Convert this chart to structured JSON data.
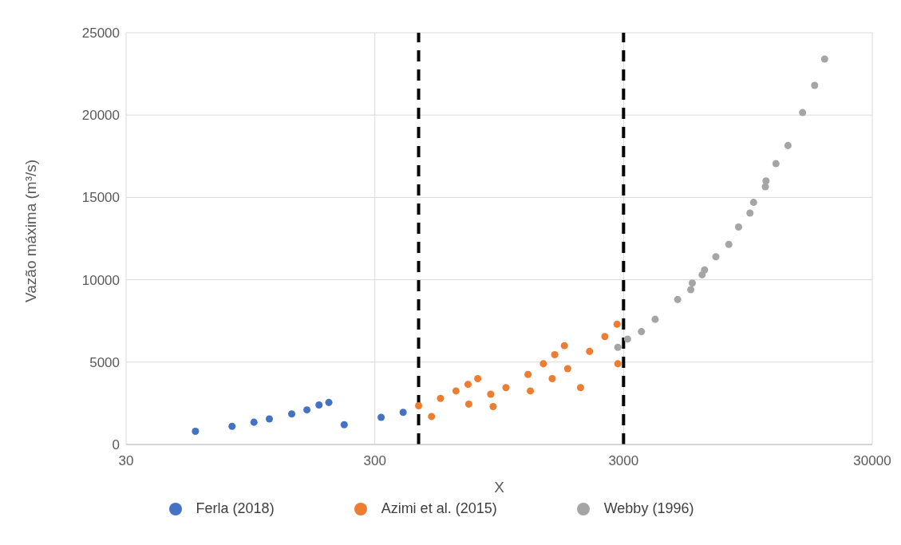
{
  "chart_data": {
    "type": "scatter",
    "xlabel": "X",
    "ylabel": "Vazão máxima (m³/s)",
    "log": "x",
    "xlim": [
      30,
      30000
    ],
    "xticks": [
      30,
      300,
      3000,
      30000
    ],
    "ylim": [
      0,
      25000
    ],
    "yticks": [
      0,
      5000,
      10000,
      15000,
      20000,
      25000
    ],
    "grid": true,
    "legend": "bottom",
    "marker": "circle",
    "series": [
      {
        "name": "Ferla (2018)",
        "color": "#4472c4",
        "x": [
          57,
          80,
          98,
          113,
          139,
          160,
          179,
          196,
          226,
          318,
          390
        ],
        "values": [
          800,
          1100,
          1350,
          1550,
          1850,
          2100,
          2400,
          2550,
          1200,
          1650,
          1950
        ]
      },
      {
        "name": "Azimi et al. (2015)",
        "color": "#ed7d31",
        "x": [
          450,
          507,
          551,
          636,
          711,
          716,
          778,
          877,
          897,
          1010,
          1239,
          1266,
          1428,
          1550,
          1586,
          1735,
          1788,
          2015,
          2190,
          2523,
          2826,
          2846
        ],
        "values": [
          2350,
          1700,
          2800,
          3250,
          3650,
          2450,
          4000,
          3050,
          2300,
          3450,
          4250,
          3250,
          4900,
          4000,
          5450,
          6000,
          4600,
          3450,
          5650,
          6550,
          7300,
          4900
        ]
      },
      {
        "name": "Webby (1996)",
        "color": "#a5a5a5",
        "x": [
          2846,
          3114,
          3540,
          4020,
          4950,
          5590,
          5670,
          6210,
          6350,
          7050,
          7950,
          8700,
          9670,
          10000,
          11150,
          11220,
          12300,
          13750,
          15740,
          17600,
          19300
        ],
        "values": [
          5900,
          6400,
          6850,
          7600,
          8800,
          9400,
          9800,
          10300,
          10600,
          11400,
          12150,
          13200,
          14050,
          14700,
          15650,
          16000,
          17050,
          18150,
          20150,
          21800,
          23400
        ]
      }
    ],
    "ref_lines": [
      {
        "axis": "x",
        "value": 450,
        "color": "#000000",
        "line_style": "dashed"
      },
      {
        "axis": "x",
        "value": 3000,
        "color": "#000000",
        "line_style": "dashed"
      }
    ]
  }
}
